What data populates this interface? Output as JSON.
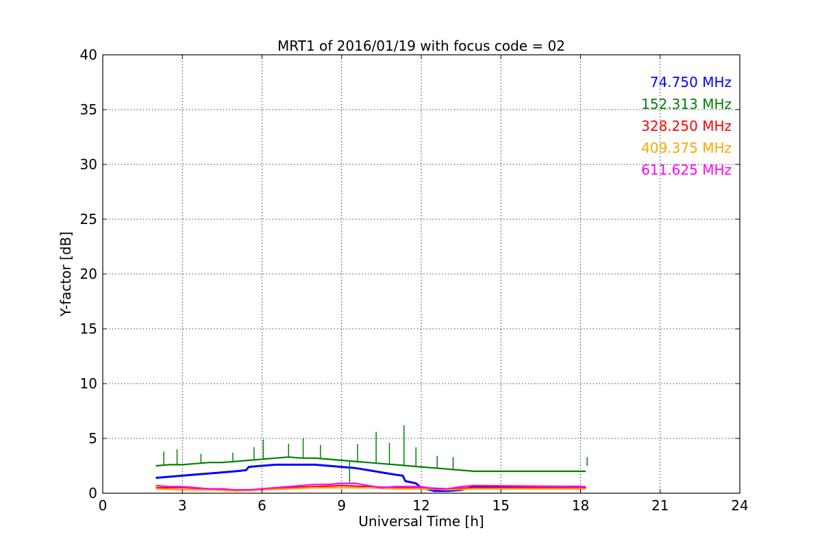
{
  "chart_data": {
    "type": "line",
    "title": "MRT1 of 2016/01/19 with focus code = 02",
    "xlabel": "Universal Time [h]",
    "ylabel": "Y-factor [dB]",
    "xlim": [
      0,
      24
    ],
    "ylim": [
      0,
      40
    ],
    "xticks": [
      0,
      3,
      6,
      9,
      12,
      15,
      18,
      21,
      24
    ],
    "yticks": [
      0,
      5,
      10,
      15,
      20,
      25,
      30,
      35,
      40
    ],
    "grid": true,
    "legend_position": "top-right",
    "series": [
      {
        "name": "74.750 MHz",
        "color": "#0000ff",
        "x": [
          2.0,
          2.5,
          3.0,
          3.5,
          4.0,
          4.5,
          5.0,
          5.4,
          5.5,
          6.0,
          6.5,
          7.0,
          7.5,
          8.0,
          8.5,
          9.0,
          9.5,
          10.0,
          10.5,
          11.0,
          11.3,
          11.4,
          11.8,
          12.0,
          12.5,
          13.0,
          13.5,
          14.0,
          18.0,
          18.2
        ],
        "y": [
          1.4,
          1.5,
          1.6,
          1.7,
          1.8,
          1.9,
          2.0,
          2.1,
          2.4,
          2.5,
          2.6,
          2.6,
          2.6,
          2.6,
          2.5,
          2.4,
          2.3,
          2.1,
          1.9,
          1.7,
          1.6,
          1.1,
          0.9,
          0.5,
          0.2,
          0.2,
          0.3,
          0.6,
          0.6,
          0.5
        ]
      },
      {
        "name": "152.313 MHz",
        "color": "#008000",
        "x": [
          2.0,
          2.5,
          3.0,
          3.5,
          4.0,
          4.5,
          5.0,
          5.5,
          6.0,
          6.5,
          7.0,
          7.5,
          8.0,
          8.5,
          9.0,
          9.5,
          10.0,
          10.5,
          11.0,
          11.5,
          12.0,
          12.5,
          13.0,
          13.5,
          14.0,
          18.0,
          18.2
        ],
        "y": [
          2.5,
          2.6,
          2.6,
          2.7,
          2.8,
          2.8,
          2.9,
          3.0,
          3.1,
          3.2,
          3.3,
          3.2,
          3.2,
          3.1,
          3.0,
          2.9,
          2.8,
          2.7,
          2.6,
          2.5,
          2.4,
          2.3,
          2.2,
          2.1,
          2.0,
          2.0,
          2.0
        ]
      },
      {
        "name": "328.250 MHz",
        "color": "#ff0000",
        "x": [
          2.0,
          3.0,
          4.0,
          5.0,
          6.0,
          7.0,
          8.0,
          9.0,
          10.0,
          11.0,
          12.0,
          13.0,
          14.0,
          18.0,
          18.2
        ],
        "y": [
          0.5,
          0.5,
          0.4,
          0.3,
          0.3,
          0.5,
          0.6,
          0.7,
          0.6,
          0.5,
          0.5,
          0.4,
          0.5,
          0.5,
          0.5
        ]
      },
      {
        "name": "409.375 MHz",
        "color": "#ffa500",
        "x": [
          2.0,
          3.0,
          4.0,
          5.0,
          6.0,
          7.0,
          8.0,
          9.0,
          10.0,
          11.0,
          12.0,
          13.0,
          14.0,
          18.0,
          18.2
        ],
        "y": [
          0.4,
          0.3,
          0.3,
          0.2,
          0.3,
          0.4,
          0.5,
          0.5,
          0.5,
          0.4,
          0.4,
          0.3,
          0.4,
          0.4,
          0.4
        ]
      },
      {
        "name": "611.625 MHz",
        "color": "#ff00ff",
        "x": [
          2.0,
          2.5,
          3.0,
          3.5,
          4.0,
          4.5,
          5.0,
          5.5,
          6.0,
          6.5,
          7.0,
          7.5,
          8.0,
          8.5,
          9.0,
          9.5,
          10.0,
          10.5,
          11.0,
          11.5,
          12.0,
          12.5,
          13.0,
          13.5,
          14.0,
          18.0,
          18.2
        ],
        "y": [
          0.7,
          0.6,
          0.6,
          0.5,
          0.4,
          0.4,
          0.3,
          0.3,
          0.4,
          0.5,
          0.6,
          0.7,
          0.8,
          0.8,
          0.9,
          0.9,
          0.7,
          0.5,
          0.6,
          0.6,
          0.6,
          0.4,
          0.4,
          0.6,
          0.7,
          0.6,
          0.6
        ]
      }
    ],
    "spikes": [
      {
        "series": 1,
        "x": 2.3,
        "y": 3.8
      },
      {
        "series": 1,
        "x": 2.8,
        "y": 4.0
      },
      {
        "series": 1,
        "x": 3.7,
        "y": 3.6
      },
      {
        "series": 1,
        "x": 4.9,
        "y": 3.7
      },
      {
        "series": 1,
        "x": 5.7,
        "y": 4.2
      },
      {
        "series": 1,
        "x": 6.05,
        "y": 4.9
      },
      {
        "series": 1,
        "x": 7.0,
        "y": 4.5
      },
      {
        "series": 1,
        "x": 7.55,
        "y": 5.0
      },
      {
        "series": 1,
        "x": 8.2,
        "y": 4.4
      },
      {
        "series": 1,
        "x": 9.3,
        "y": 1.0
      },
      {
        "series": 1,
        "x": 9.6,
        "y": 4.5
      },
      {
        "series": 1,
        "x": 10.3,
        "y": 5.6
      },
      {
        "series": 1,
        "x": 10.8,
        "y": 4.6
      },
      {
        "series": 1,
        "x": 11.35,
        "y": 6.2
      },
      {
        "series": 1,
        "x": 11.8,
        "y": 4.2
      },
      {
        "series": 1,
        "x": 12.6,
        "y": 3.4
      },
      {
        "series": 1,
        "x": 13.2,
        "y": 3.3
      },
      {
        "series": 1,
        "x": 18.25,
        "y": 3.3
      }
    ]
  }
}
